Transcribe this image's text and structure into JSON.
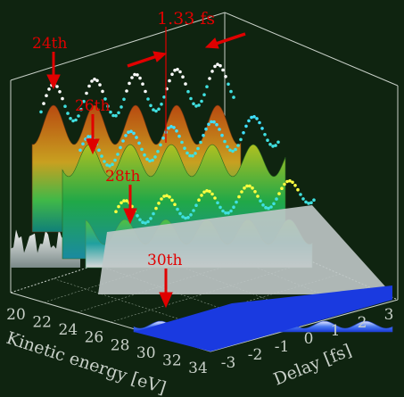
{
  "colors": {
    "background": "#0f2410",
    "box_line": "#c8d0c8",
    "arrow": "#e00000",
    "label_red": "#e00000",
    "axis_text": "#c8d0c8"
  },
  "chart_data": {
    "type": "surface",
    "title": "",
    "period_label": "1.33 fs",
    "xlabel": "Delay [fs]",
    "ylabel": "Kinetic energy [eV]",
    "x_ticks": [
      "-3",
      "-2",
      "-1",
      "0",
      "1",
      "2",
      "3"
    ],
    "y_ticks": [
      "20",
      "22",
      "24",
      "26",
      "28",
      "30",
      "32",
      "34"
    ],
    "xlim": [
      -3,
      3
    ],
    "ylim": [
      20,
      34
    ],
    "period_fs": 1.33,
    "harmonics": [
      {
        "label": "24th",
        "oscillation_amplitude": 1.0,
        "ridge_color": "#ffffff"
      },
      {
        "label": "26th",
        "oscillation_amplitude": 0.8,
        "ridge_color": "#40e0ff"
      },
      {
        "label": "28th",
        "oscillation_amplitude": 0.6,
        "ridge_color": "#ffff40"
      },
      {
        "label": "30th",
        "oscillation_amplitude": 0.15,
        "ridge_color": "#ffffff"
      }
    ]
  }
}
